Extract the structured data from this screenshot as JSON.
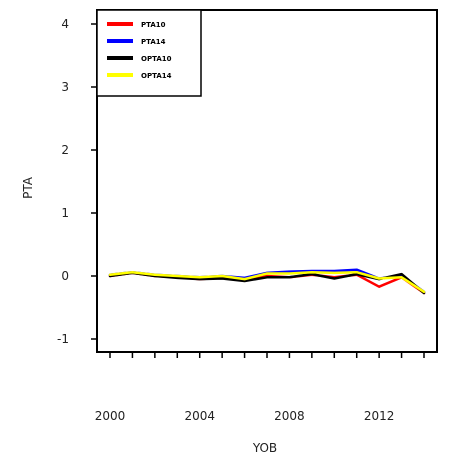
{
  "chart_data": {
    "type": "line",
    "title": "",
    "xlabel": "YOB",
    "ylabel": "PTA",
    "xlim": [
      2000,
      2014
    ],
    "ylim": [
      -1.1,
      4.2
    ],
    "x_ticks": [
      2000,
      2004,
      2008,
      2012
    ],
    "x_minor_ticks": [
      2000,
      2001,
      2002,
      2003,
      2004,
      2005,
      2006,
      2007,
      2008,
      2009,
      2010,
      2011,
      2012,
      2013,
      2014
    ],
    "y_ticks": [
      -1,
      0,
      1,
      2,
      3,
      4
    ],
    "legend_position": "top-left",
    "grid": false,
    "x": [
      2000,
      2001,
      2002,
      2003,
      2004,
      2005,
      2006,
      2007,
      2008,
      2009,
      2010,
      2011,
      2012,
      2013,
      2014
    ],
    "series": [
      {
        "name": "PTA10",
        "color": "#ff0000",
        "values": [
          0.0,
          0.05,
          0.0,
          -0.02,
          -0.05,
          -0.03,
          -0.07,
          0.0,
          -0.02,
          0.02,
          -0.02,
          0.02,
          -0.17,
          -0.02,
          -0.27
        ]
      },
      {
        "name": "PTA14",
        "color": "#0000ff",
        "values": [
          0.02,
          0.06,
          0.02,
          0.0,
          -0.02,
          0.0,
          -0.03,
          0.05,
          0.07,
          0.08,
          0.08,
          0.1,
          -0.04,
          0.0,
          -0.25
        ]
      },
      {
        "name": "OPTA10",
        "color": "#000000",
        "values": [
          0.0,
          0.05,
          0.0,
          -0.03,
          -0.05,
          -0.04,
          -0.08,
          -0.02,
          -0.02,
          0.03,
          -0.04,
          0.03,
          -0.05,
          0.03,
          -0.27
        ]
      },
      {
        "name": "OPTA14",
        "color": "#ffff00",
        "values": [
          0.02,
          0.06,
          0.02,
          0.0,
          -0.02,
          0.0,
          -0.05,
          0.04,
          0.04,
          0.06,
          0.05,
          0.06,
          -0.04,
          -0.02,
          -0.25
        ]
      }
    ]
  }
}
